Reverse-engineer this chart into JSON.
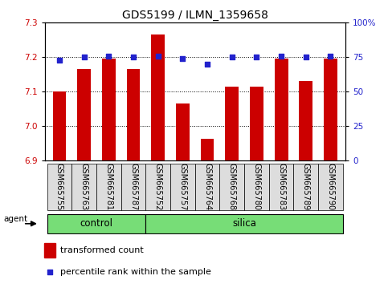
{
  "title": "GDS5199 / ILMN_1359658",
  "samples": [
    "GSM665755",
    "GSM665763",
    "GSM665781",
    "GSM665787",
    "GSM665752",
    "GSM665757",
    "GSM665764",
    "GSM665768",
    "GSM665780",
    "GSM665783",
    "GSM665789",
    "GSM665790"
  ],
  "n_control": 4,
  "n_silica": 8,
  "transformed_count": [
    7.1,
    7.165,
    7.195,
    7.165,
    7.265,
    7.065,
    6.962,
    7.115,
    7.115,
    7.195,
    7.13,
    7.195
  ],
  "percentile_rank": [
    73,
    75,
    76,
    75,
    76,
    74,
    70,
    75,
    75,
    76,
    75,
    76
  ],
  "ylim_left": [
    6.9,
    7.3
  ],
  "ylim_right": [
    0,
    100
  ],
  "yticks_left": [
    6.9,
    7.0,
    7.1,
    7.2,
    7.3
  ],
  "yticks_right": [
    0,
    25,
    50,
    75,
    100
  ],
  "bar_color": "#cc0000",
  "dot_color": "#2222cc",
  "bar_bottom": 6.9,
  "group_color": "#77dd77",
  "xlabel_bg_color": "#dddddd",
  "agent_label": "agent",
  "legend_bar_label": "transformed count",
  "legend_dot_label": "percentile rank within the sample",
  "title_fontsize": 10,
  "tick_fontsize": 7.5,
  "label_fontsize": 8,
  "group_fontsize": 8.5
}
